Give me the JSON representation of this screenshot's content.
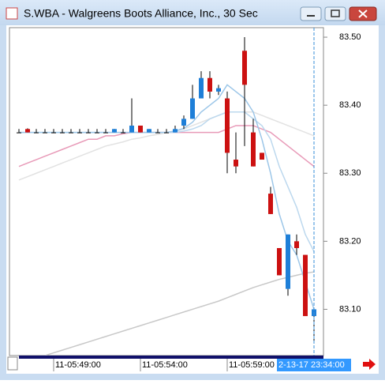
{
  "chart_data": {
    "type": "candlestick",
    "title": "S.WBA - Walgreens Boots Alliance, Inc., 30 Sec",
    "categories": [
      null,
      null,
      null,
      null,
      "11-05:49:00",
      null,
      null,
      null,
      null,
      null,
      null,
      null,
      null,
      null,
      "11-05:54:00",
      null,
      null,
      null,
      null,
      null,
      null,
      null,
      null,
      null,
      "11-05:59:00",
      null,
      null,
      null,
      null,
      null,
      null,
      null,
      null,
      null,
      null
    ],
    "cursor_label": "2-13-17 23:34:00",
    "open": [
      83.36,
      83.365,
      83.36,
      83.36,
      83.36,
      83.36,
      83.36,
      83.36,
      83.36,
      83.36,
      83.36,
      83.36,
      83.36,
      83.36,
      83.37,
      83.36,
      83.36,
      83.36,
      83.36,
      83.37,
      83.38,
      83.41,
      83.44,
      83.42,
      83.41,
      83.32,
      83.48,
      83.36,
      83.33,
      83.27,
      83.19,
      83.13,
      83.2,
      83.18,
      83.09
    ],
    "high": [
      83.365,
      83.366,
      83.365,
      83.365,
      83.365,
      83.365,
      83.365,
      83.365,
      83.365,
      83.365,
      83.365,
      83.365,
      83.365,
      83.41,
      83.37,
      83.365,
      83.365,
      83.365,
      83.37,
      83.385,
      83.43,
      83.45,
      83.45,
      83.43,
      83.42,
      83.36,
      83.5,
      83.38,
      83.33,
      83.28,
      83.19,
      83.21,
      83.21,
      83.18,
      83.1
    ],
    "low": [
      83.36,
      83.36,
      83.36,
      83.36,
      83.36,
      83.36,
      83.36,
      83.36,
      83.36,
      83.36,
      83.36,
      83.36,
      83.36,
      83.36,
      83.36,
      83.36,
      83.36,
      83.36,
      83.36,
      83.365,
      83.38,
      83.41,
      83.41,
      83.415,
      83.3,
      83.3,
      83.34,
      83.31,
      83.32,
      83.24,
      83.15,
      83.12,
      83.18,
      83.09,
      83.05
    ],
    "close": [
      83.36,
      83.36,
      83.36,
      83.36,
      83.36,
      83.36,
      83.36,
      83.36,
      83.36,
      83.36,
      83.36,
      83.365,
      83.36,
      83.37,
      83.36,
      83.365,
      83.36,
      83.36,
      83.365,
      83.38,
      83.41,
      83.44,
      83.42,
      83.425,
      83.33,
      83.31,
      83.43,
      83.31,
      83.32,
      83.24,
      83.15,
      83.21,
      83.19,
      83.09,
      83.1
    ],
    "up_color": "#1e7fd8",
    "down_color": "#cc1111",
    "lines": [
      {
        "color": "#e2e2e2",
        "values": [
          83.29,
          83.295,
          83.3,
          83.305,
          83.31,
          83.315,
          83.32,
          83.325,
          83.33,
          83.335,
          83.34,
          83.343,
          83.346,
          83.35,
          83.352,
          83.355,
          83.357,
          83.36,
          83.362,
          83.365,
          83.37,
          83.375,
          83.38,
          83.385,
          83.39,
          83.39,
          83.39,
          83.39,
          83.385,
          83.38,
          83.375,
          83.37,
          83.365,
          83.36,
          83.355
        ]
      },
      {
        "color": "#c8c8c8",
        "values": [
          null,
          null,
          null,
          83.032,
          83.036,
          83.04,
          83.044,
          83.048,
          83.052,
          83.056,
          83.06,
          83.064,
          83.068,
          83.072,
          83.076,
          83.08,
          83.084,
          83.088,
          83.092,
          83.096,
          83.1,
          83.104,
          83.108,
          83.112,
          83.117,
          83.122,
          83.127,
          83.132,
          83.136,
          83.14,
          83.144,
          83.147,
          83.15,
          83.153,
          83.155
        ]
      },
      {
        "color": "#e89ab8",
        "values": [
          83.31,
          83.315,
          83.32,
          83.325,
          83.33,
          83.335,
          83.34,
          83.345,
          83.35,
          83.35,
          83.355,
          83.355,
          83.358,
          83.36,
          83.36,
          83.36,
          83.36,
          83.36,
          83.36,
          83.36,
          83.36,
          83.36,
          83.36,
          83.36,
          83.365,
          83.37,
          83.37,
          83.37,
          83.365,
          83.36,
          83.35,
          83.34,
          83.33,
          83.32,
          83.31
        ]
      },
      {
        "color": "#bcd8ee",
        "values": [
          83.36,
          83.36,
          83.36,
          83.36,
          83.36,
          83.36,
          83.36,
          83.36,
          83.36,
          83.36,
          83.36,
          83.36,
          83.36,
          83.36,
          83.36,
          83.36,
          83.36,
          83.36,
          83.36,
          83.362,
          83.365,
          83.37,
          83.38,
          83.385,
          83.39,
          83.39,
          83.39,
          83.38,
          83.37,
          83.35,
          83.31,
          83.28,
          83.25,
          83.21,
          83.185
        ]
      },
      {
        "color": "#9cc6e8",
        "values": [
          83.36,
          83.36,
          83.36,
          83.36,
          83.36,
          83.36,
          83.36,
          83.36,
          83.36,
          83.36,
          83.36,
          83.36,
          83.36,
          83.36,
          83.36,
          83.36,
          83.36,
          83.36,
          83.362,
          83.366,
          83.375,
          83.39,
          83.4,
          83.41,
          83.43,
          83.42,
          83.41,
          83.39,
          83.35,
          83.3,
          83.24,
          83.2,
          83.18,
          83.14,
          83.1
        ]
      }
    ],
    "ylim": [
      83.032,
      83.514
    ],
    "yticks": [
      {
        "value": 83.5,
        "label": "83.50"
      },
      {
        "value": 83.4,
        "label": "83.40"
      },
      {
        "value": 83.3,
        "label": "83.30"
      },
      {
        "value": 83.2,
        "label": "83.20"
      },
      {
        "value": 83.1,
        "label": "83.10"
      }
    ]
  }
}
